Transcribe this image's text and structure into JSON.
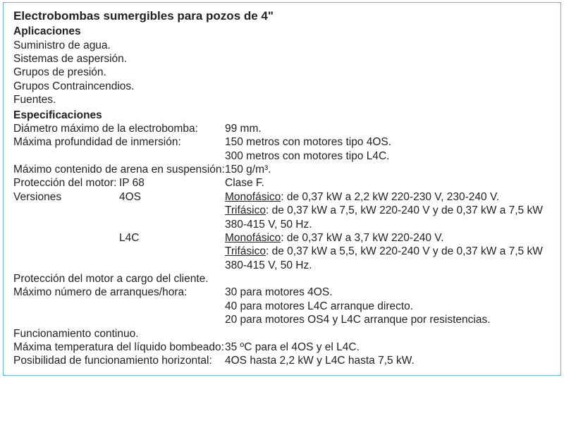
{
  "title": "Electrobombas sumergibles para pozos de 4\"",
  "aplicaciones": {
    "heading": "Aplicaciones",
    "items": [
      "Suministro de agua.",
      "Sistemas de aspersión.",
      "Grupos de presión.",
      "Grupos Contraincendios.",
      "Fuentes."
    ]
  },
  "esp": {
    "heading": "Especificaciones",
    "diam_label": "Diámetro máximo de la electrobomba:",
    "diam_val": "99 mm.",
    "prof_label": "Máxima profundidad de inmersión:",
    "prof_val1": "150 metros con motores tipo 4OS.",
    "prof_val2": "300 metros con motores tipo L4C.",
    "arena_label": "Máximo contenido de arena en suspensión:",
    "arena_val": "150 g/m³.",
    "prot_label": "Protección del motor:",
    "prot_ip": "IP 68",
    "prot_clase": "Clase F.",
    "versiones_label": "Versiones",
    "ver1": "4OS",
    "ver1_mono_label": "Monofásico",
    "ver1_mono": ": de 0,37 kW a 2,2 kW 220-230 V, 230-240 V.",
    "ver1_tri_label": "Trifásico",
    "ver1_tri": ": de 0,37 kW a 7,5, kW 220-240 V  y de 0,37 kW a 7,5  kW 380-415 V, 50 Hz.",
    "ver2": "L4C",
    "ver2_mono_label": "Monofásico",
    "ver2_mono": ": de 0,37 kW a 3,7 kW 220-240 V.",
    "ver2_tri_label": "Trifásico",
    "ver2_tri": ": de 0,37 kW a 5,5, kW 220-240 V  y de 0,37 kW a 7,5 kW  380-415 V, 50 Hz.",
    "prot_cliente": "Protección del motor a cargo del cliente.",
    "arr_label": "Máximo número de arranques/hora:",
    "arr1": "30 para motores 4OS.",
    "arr2": "40 para motores L4C arranque directo.",
    "arr3": "20 para motores OS4 y L4C arranque por resistencias.",
    "func": "Funcionamiento continuo.",
    "temp_label": "Máxima temperatura del líquido bombeado:",
    "temp_val": "35 ºC para el 4OS y el L4C.",
    "horiz_label": "Posibilidad de funcionamiento horizontal:",
    "horiz_val": "4OS hasta 2,2 kW y L4C hasta 7,5 kW."
  }
}
